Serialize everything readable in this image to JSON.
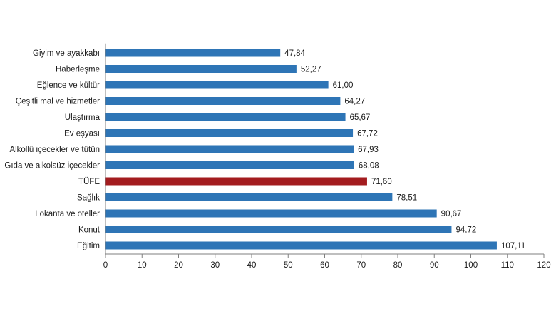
{
  "chart_data": {
    "type": "bar",
    "orientation": "horizontal",
    "categories": [
      "Giyim ve ayakkabı",
      "Haberleşme",
      "Eğlence ve kültür",
      "Çeşitli mal ve hizmetler",
      "Ulaştırma",
      "Ev eşyası",
      "Alkollü içecekler ve tütün",
      "Gıda ve alkolsüz içecekler",
      "TÜFE",
      "Sağlık",
      "Lokanta ve oteller",
      "Konut",
      "Eğitim"
    ],
    "values": [
      47.84,
      52.27,
      61.0,
      64.27,
      65.67,
      67.72,
      67.93,
      68.08,
      71.6,
      78.51,
      90.67,
      94.72,
      107.11
    ],
    "value_labels": [
      "47,84",
      "52,27",
      "61,00",
      "64,27",
      "65,67",
      "67,72",
      "67,93",
      "68,08",
      "71,60",
      "78,51",
      "90,67",
      "94,72",
      "107,11"
    ],
    "highlight_category": "TÜFE",
    "xlim": [
      0,
      120
    ],
    "x_ticks": [
      0,
      10,
      20,
      30,
      40,
      50,
      60,
      70,
      80,
      90,
      100,
      110,
      120
    ],
    "x_tick_labels": [
      "0",
      "10",
      "20",
      "30",
      "40",
      "50",
      "60",
      "70",
      "80",
      "90",
      "100",
      "110",
      "120"
    ],
    "grid": false,
    "legend": "none",
    "title": "",
    "xlabel": "",
    "ylabel": "",
    "colors": {
      "bar": "#2e75b6",
      "highlight": "#a31c1f",
      "axis": "#7f7f7f"
    }
  }
}
